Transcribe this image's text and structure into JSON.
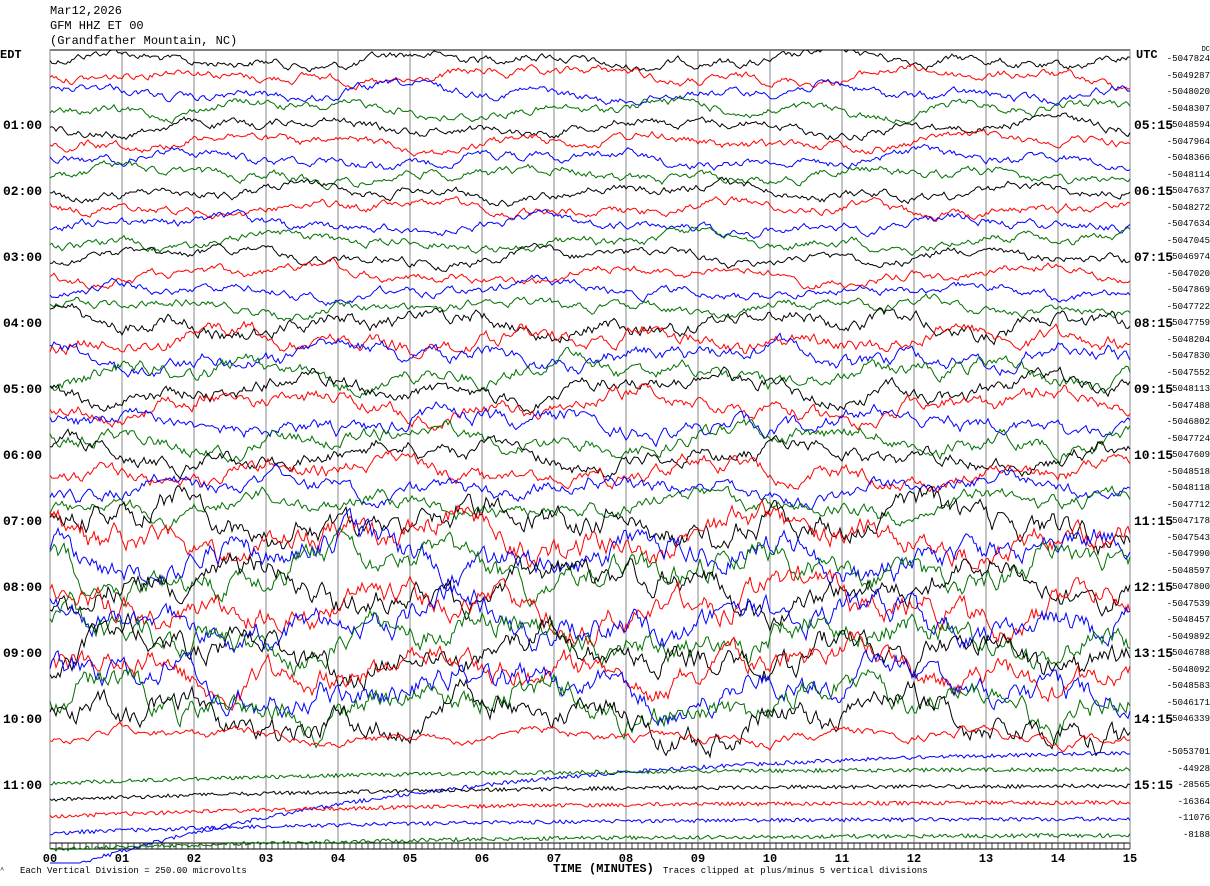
{
  "header": {
    "date": "Mar12,2026",
    "station": "GFM HHZ ET 00",
    "location": "(Grandfather Mountain, NC)"
  },
  "left_axis": {
    "timezone": "EDT",
    "hour_labels": [
      "01:00",
      "02:00",
      "03:00",
      "04:00",
      "05:00",
      "06:00",
      "07:00",
      "08:00",
      "09:00",
      "10:00",
      "11:00"
    ]
  },
  "right_axis": {
    "timezone": "UTC",
    "dc_label": "DC",
    "hour_labels": [
      "05:15",
      "06:15",
      "07:15",
      "08:15",
      "09:15",
      "10:15",
      "11:15",
      "12:15",
      "13:15",
      "14:15",
      "15:15"
    ]
  },
  "footer": {
    "scale_note": "Each Vertical Division =  250.00 microvolts",
    "x_title": "TIME (MINUTES)",
    "clip_note": "Traces clipped at plus/minus 5 vertical divisions"
  },
  "chart_data": {
    "type": "line",
    "title": "GFM HHZ ET 00",
    "xlabel": "TIME (MINUTES)",
    "x_ticks": [
      "00",
      "01",
      "02",
      "03",
      "04",
      "05",
      "06",
      "07",
      "08",
      "09",
      "10",
      "11",
      "12",
      "13",
      "14",
      "15"
    ],
    "xlim": [
      0,
      15
    ],
    "rows_per_hour": 4,
    "grid": true,
    "trace_colors": [
      "#000000",
      "#ff0000",
      "#0000ff",
      "#007000"
    ],
    "dc_offsets": [
      "-5047824",
      "-5049287",
      "-5048020",
      "-5048307",
      "-5048594",
      "-5047964",
      "-5048366",
      "-5048114",
      "-5047637",
      "-5048272",
      "-5047634",
      "-5047045",
      "-5046974",
      "-5047020",
      "-5047869",
      "-5047722",
      "-5047759",
      "-5048204",
      "-5047830",
      "-5047552",
      "-5048113",
      "-5047488",
      "-5046802",
      "-5047724",
      "-5047609",
      "-5048518",
      "-5048118",
      "-5047712",
      "-5047178",
      "-5047543",
      "-5047990",
      "-5048597",
      "-5047800",
      "-5047539",
      "-5048457",
      "-5049892",
      "-5046788",
      "-5048092",
      "-5048583",
      "-5046171",
      "-5046339",
      "",
      "-5053701",
      "-44928",
      "-28565",
      "-16364",
      "-11076",
      "-8188"
    ]
  }
}
